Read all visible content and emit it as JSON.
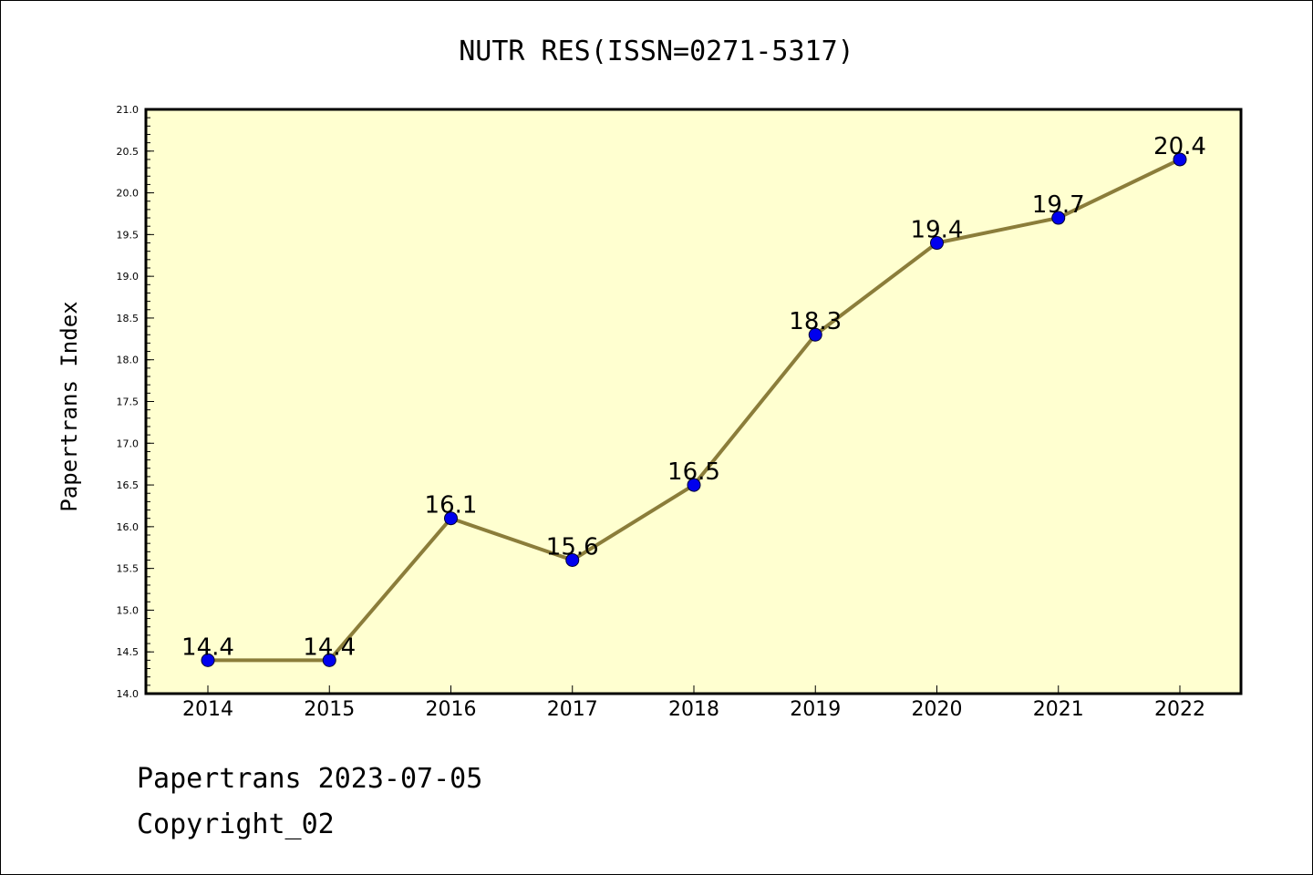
{
  "chart_data": {
    "type": "line",
    "title": "NUTR RES(ISSN=0271-5317)",
    "ylabel": "Papertrans Index",
    "xlabel": "",
    "x": [
      "2014",
      "2015",
      "2016",
      "2017",
      "2018",
      "2019",
      "2020",
      "2021",
      "2022"
    ],
    "values": [
      14.4,
      14.4,
      16.1,
      15.6,
      16.5,
      18.3,
      19.4,
      19.7,
      20.4
    ],
    "data_labels": [
      "14.4",
      "14.4",
      "16.1",
      "15.6",
      "16.5",
      "18.3",
      "19.4",
      "19.7",
      "20.4"
    ],
    "ylim": [
      14.0,
      21.0
    ],
    "yticks": [
      "14.0",
      "14.5",
      "15.0",
      "15.5",
      "16.0",
      "16.5",
      "17.0",
      "17.5",
      "18.0",
      "18.5",
      "19.0",
      "19.5",
      "20.0",
      "20.5",
      "21.0"
    ],
    "grid": false,
    "line_color": "#8b7d3a",
    "marker_color": "#0000ee",
    "plot_background": "#ffffd0"
  },
  "footer": {
    "line1": "Papertrans 2023-07-05",
    "line2": "Copyright_02"
  }
}
